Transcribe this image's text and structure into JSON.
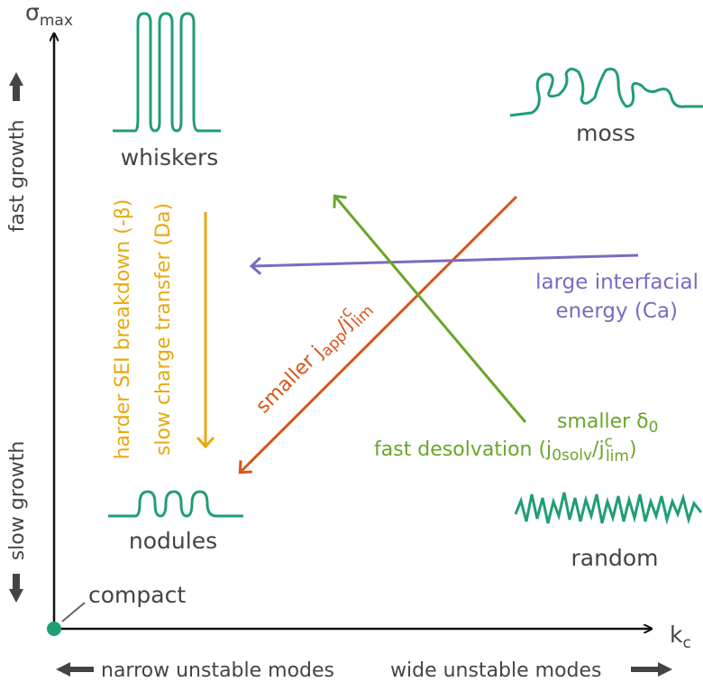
{
  "axes": {
    "y_label": {
      "main": "σ",
      "sub": "max"
    },
    "x_label": {
      "main": "k",
      "sub": "c"
    },
    "y_low": "slow growth",
    "y_high": "fast growth",
    "x_low": "narrow unstable modes",
    "x_high": "wide unstable modes"
  },
  "morphologies": {
    "whiskers": "whiskers",
    "moss": "moss",
    "nodules": "nodules",
    "random": "random",
    "compact": "compact"
  },
  "arrows": {
    "sei": "harder SEI breakdown (-β)",
    "charge": "slow charge transfer (Da)",
    "current": {
      "pre": "smaller j",
      "sub1": "app",
      "slash": "/j",
      "sup": "c",
      "sub2": "lim"
    },
    "interfacial": [
      "large interfacial",
      "energy (Ca)"
    ],
    "desolvation": {
      "line1_pre": "smaller δ",
      "line1_sub": "0",
      "line2_pre": "fast desolvation (j",
      "line2_sub1": "0solv",
      "line2_slash": "/j",
      "line2_sup": "c",
      "line2_sub2": "lim",
      "line2_post": ")"
    }
  }
}
